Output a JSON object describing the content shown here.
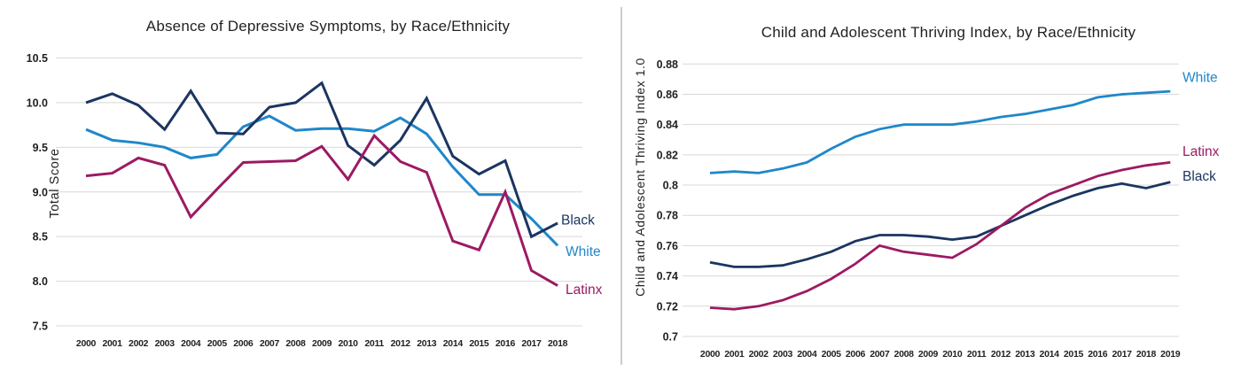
{
  "colors": {
    "black_series": "#1b3561",
    "white_series": "#1f87c9",
    "latinx_series": "#9c1a62",
    "gridline": "#d8d8d8",
    "text": "#231f20",
    "divider": "#cccccc"
  },
  "chart_data": [
    {
      "type": "line",
      "title": "Absence of Depressive Symptoms, by Race/Ethnicity",
      "ylabel": "Total Score",
      "xlabel": "",
      "ylim": [
        7.5,
        10.5
      ],
      "yticks": [
        10.5,
        10.0,
        9.5,
        9.0,
        8.5,
        8.0,
        7.5
      ],
      "ytick_labels": [
        "10.5",
        "10.0",
        "9.5",
        "9.0",
        "8.5",
        "8.0",
        "7.5"
      ],
      "grid": true,
      "legend_position": "right-of-line-ends",
      "x": [
        2000,
        2001,
        2002,
        2003,
        2004,
        2005,
        2006,
        2007,
        2008,
        2009,
        2010,
        2011,
        2012,
        2013,
        2014,
        2015,
        2016,
        2017,
        2018
      ],
      "series": [
        {
          "name": "White",
          "color": "#1f87c9",
          "values": [
            9.7,
            9.58,
            9.55,
            9.5,
            9.38,
            9.42,
            9.73,
            9.85,
            9.69,
            9.71,
            9.71,
            9.68,
            9.83,
            9.65,
            9.28,
            8.97,
            8.97,
            8.7,
            8.4
          ]
        },
        {
          "name": "Black",
          "color": "#1b3561",
          "values": [
            10.0,
            10.1,
            9.97,
            9.7,
            10.13,
            9.66,
            9.65,
            9.95,
            10.0,
            10.22,
            9.52,
            9.3,
            9.58,
            10.05,
            9.4,
            9.2,
            9.35,
            8.5,
            8.65
          ]
        },
        {
          "name": "Latinx",
          "color": "#9c1a62",
          "values": [
            9.18,
            9.21,
            9.38,
            9.3,
            8.72,
            9.03,
            9.33,
            9.34,
            9.35,
            9.51,
            9.14,
            9.63,
            9.34,
            9.22,
            8.45,
            8.35,
            9.0,
            8.12,
            7.95
          ]
        }
      ]
    },
    {
      "type": "line",
      "title": "Child and Adolescent Thriving Index, by Race/Ethnicity",
      "ylabel": "Child and Adolescent Thriving Index 1.0",
      "xlabel": "",
      "ylim": [
        0.7,
        0.88
      ],
      "yticks": [
        0.88,
        0.86,
        0.84,
        0.82,
        0.8,
        0.78,
        0.76,
        0.74,
        0.72,
        0.7
      ],
      "ytick_labels": [
        "0.88",
        "0.86",
        "0.84",
        "0.82",
        "0.8",
        "0.78",
        "0.76",
        "0.74",
        "0.72",
        "0.7"
      ],
      "grid": true,
      "legend_position": "right-of-line-ends",
      "x": [
        2000,
        2001,
        2002,
        2003,
        2004,
        2005,
        2006,
        2007,
        2008,
        2009,
        2010,
        2011,
        2012,
        2013,
        2014,
        2015,
        2016,
        2017,
        2018,
        2019
      ],
      "series": [
        {
          "name": "White",
          "color": "#1f87c9",
          "values": [
            0.808,
            0.809,
            0.808,
            0.811,
            0.815,
            0.824,
            0.832,
            0.837,
            0.84,
            0.84,
            0.84,
            0.842,
            0.845,
            0.847,
            0.85,
            0.853,
            0.858,
            0.86,
            0.861,
            0.862
          ]
        },
        {
          "name": "Black",
          "color": "#1b3561",
          "values": [
            0.749,
            0.746,
            0.746,
            0.747,
            0.751,
            0.756,
            0.763,
            0.767,
            0.767,
            0.766,
            0.764,
            0.766,
            0.773,
            0.78,
            0.787,
            0.793,
            0.798,
            0.801,
            0.798,
            0.802
          ]
        },
        {
          "name": "Latinx",
          "color": "#9c1a62",
          "values": [
            0.719,
            0.718,
            0.72,
            0.724,
            0.73,
            0.738,
            0.748,
            0.76,
            0.756,
            0.754,
            0.752,
            0.761,
            0.773,
            0.785,
            0.794,
            0.8,
            0.806,
            0.81,
            0.813,
            0.815
          ]
        }
      ]
    }
  ]
}
